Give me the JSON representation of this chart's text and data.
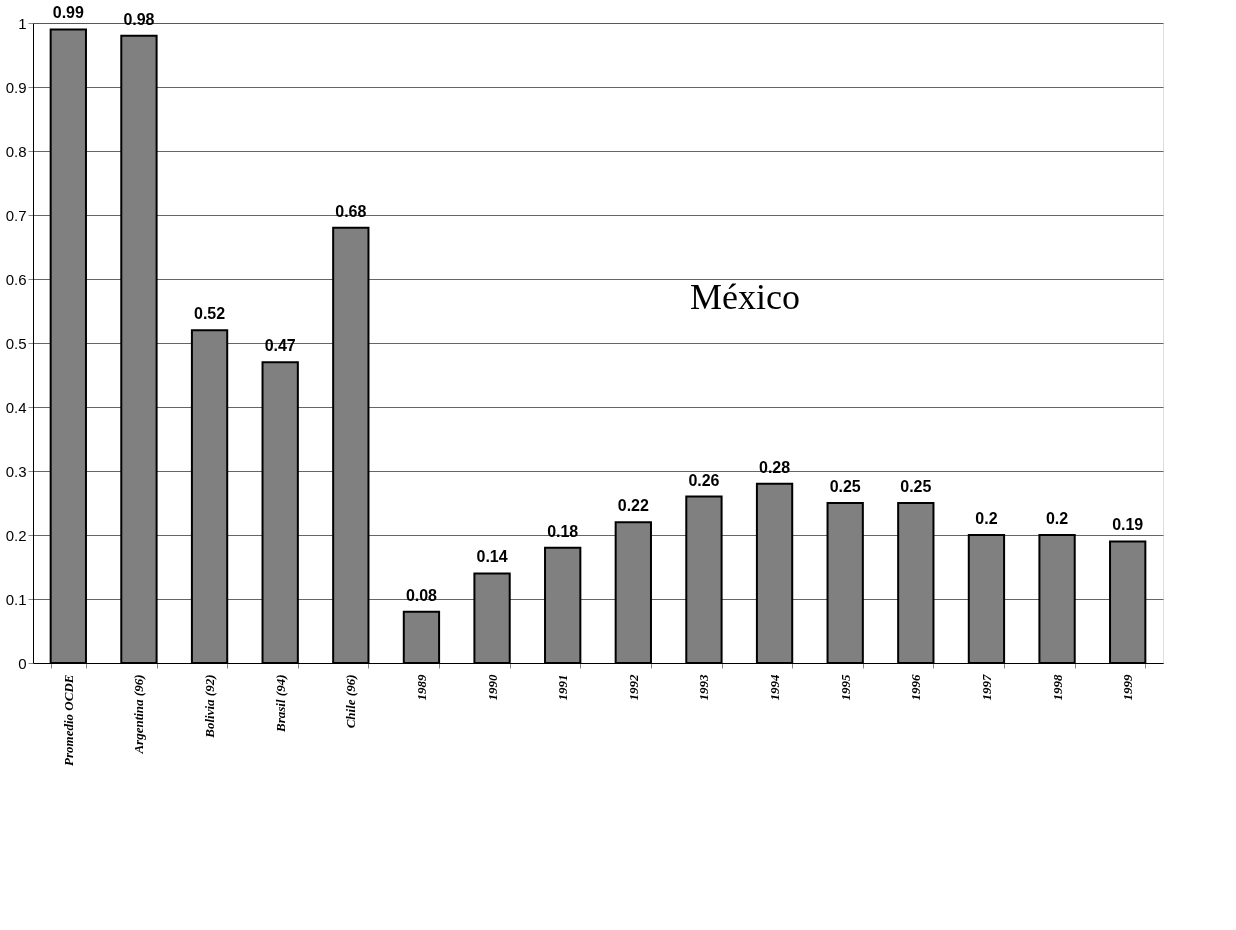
{
  "chart_data": {
    "type": "bar",
    "categories": [
      "Promedio OCDE",
      "Argentina (96)",
      "Bolivia (92)",
      "Brasil (94)",
      "Chile (96)",
      "1989",
      "1990",
      "1991",
      "1992",
      "1993",
      "1994",
      "1995",
      "1996",
      "1997",
      "1998",
      "1999"
    ],
    "values": [
      0.99,
      0.98,
      0.52,
      0.47,
      0.68,
      0.08,
      0.14,
      0.18,
      0.22,
      0.26,
      0.28,
      0.25,
      0.25,
      0.2,
      0.2,
      0.19
    ],
    "color": "#808080",
    "ylim": [
      0,
      1
    ],
    "yticks": [
      0,
      0.1,
      0.2,
      0.3,
      0.4,
      0.5,
      0.6,
      0.7,
      0.8,
      0.9,
      1
    ],
    "grid": "y",
    "data_labels": true,
    "annotations": [
      "México"
    ]
  }
}
